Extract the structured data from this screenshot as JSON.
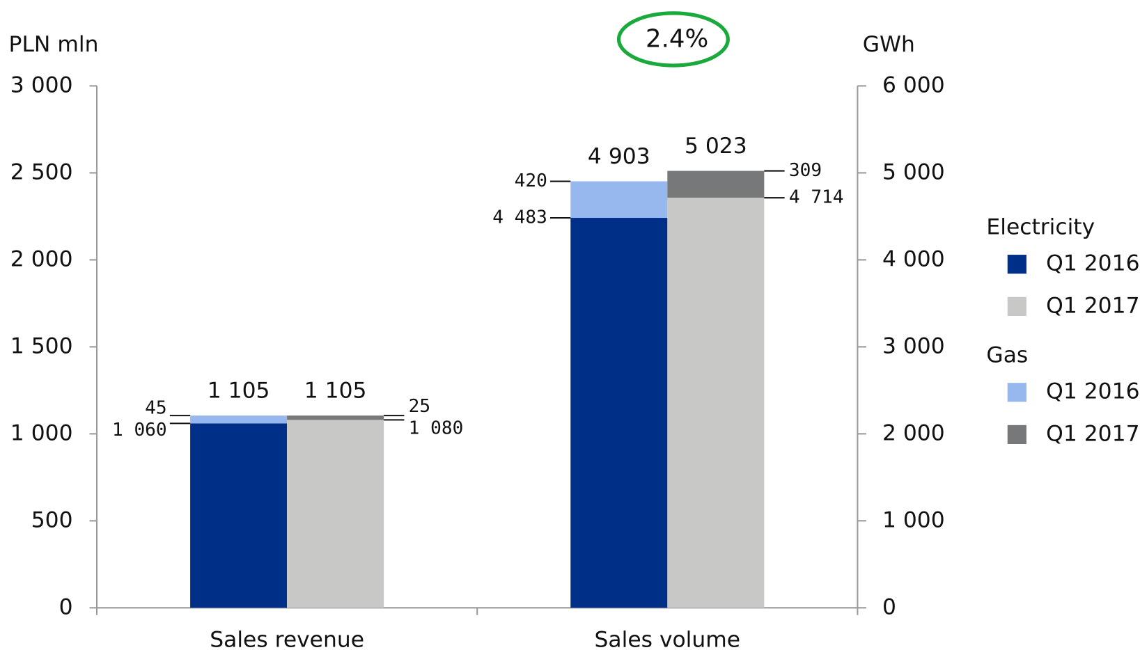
{
  "chart_data": {
    "type": "stacked_bar",
    "y_label": "PLN mln",
    "y2_label": "GWh",
    "annotation": "2.4%",
    "categories": [
      "Sales revenue",
      "Sales volume"
    ],
    "category_axes": [
      "y",
      "y2"
    ],
    "ylim": [
      0,
      3000
    ],
    "yticks": [
      0,
      500,
      {
        "value": 1000,
        "label": "1 000"
      },
      {
        "value": 1500,
        "label": "1 500"
      },
      {
        "value": 2000,
        "label": "2 000"
      },
      {
        "value": 2500,
        "label": "2 500"
      },
      {
        "value": 3000,
        "label": "3 000"
      }
    ],
    "y2lim": [
      0,
      6000
    ],
    "y2ticks": [
      0,
      {
        "value": 1000,
        "label": "1 000"
      },
      {
        "value": 2000,
        "label": "2 000"
      },
      {
        "value": 3000,
        "label": "3 000"
      },
      {
        "value": 4000,
        "label": "4 000"
      },
      {
        "value": 5000,
        "label": "5 000"
      },
      {
        "value": 6000,
        "label": "6 000"
      }
    ],
    "legend_groups": [
      "Electricity",
      "Gas"
    ],
    "series": [
      {
        "name": "Q1 2016",
        "group": 0,
        "stack": 0,
        "color": "#002f87",
        "values": [
          1060,
          4483
        ],
        "value_labels": [
          "1 060",
          "4 483"
        ]
      },
      {
        "name": "Q1 2017",
        "group": 0,
        "stack": 1,
        "color": "#c8c9c7",
        "values": [
          1080,
          4714
        ],
        "value_labels": [
          "1 080",
          "4 714"
        ]
      },
      {
        "name": "Q1 2016",
        "group": 1,
        "stack": 0,
        "color": "#97b8ee",
        "values": [
          45,
          420
        ],
        "value_labels": [
          "45",
          "420"
        ]
      },
      {
        "name": "Q1 2017",
        "group": 1,
        "stack": 1,
        "color": "#76787a",
        "values": [
          25,
          309
        ],
        "value_labels": [
          "25",
          "309"
        ]
      }
    ],
    "totals": [
      {
        "values": [
          1105,
          4903
        ],
        "value_labels": [
          "1 105",
          "4 903"
        ]
      },
      {
        "values": [
          1105,
          5023
        ],
        "value_labels": [
          "1 105",
          "5 023"
        ]
      }
    ]
  }
}
